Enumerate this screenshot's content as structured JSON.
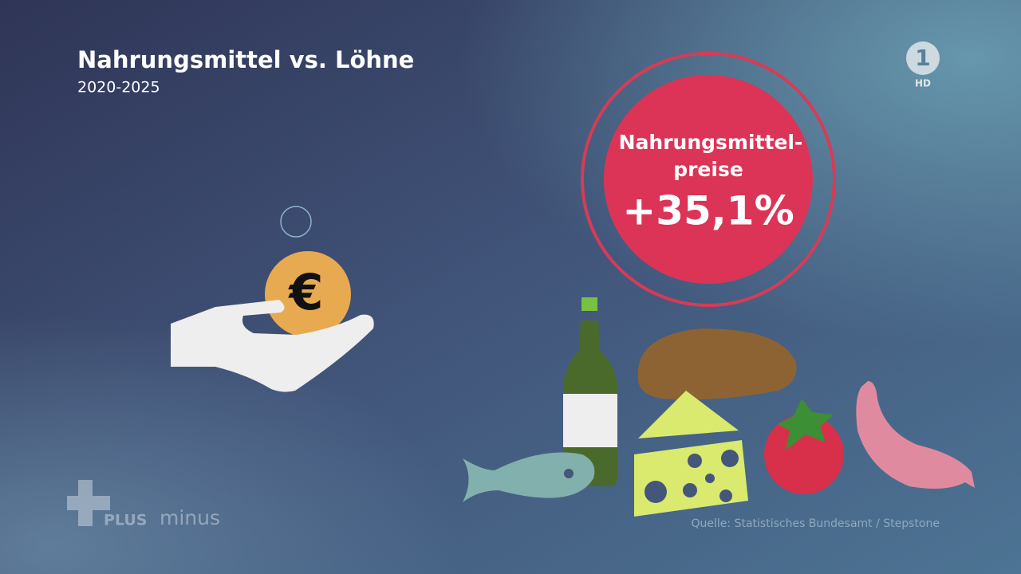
{
  "header": {
    "title": "Nahrungsmittel vs. Löhne",
    "subtitle": "2020-2025"
  },
  "badge": {
    "label_lines": [
      "Nahrungsmittel-",
      "preise"
    ],
    "value": "+35,1%"
  },
  "coin": {
    "symbol": "€"
  },
  "source": "Quelle: Statistisches Bundesamt / Stepstone",
  "channel_logo": {
    "number": "1",
    "quality": "HD"
  },
  "show_logo": {
    "prefix": "PLUS",
    "suffix": "minus"
  }
}
